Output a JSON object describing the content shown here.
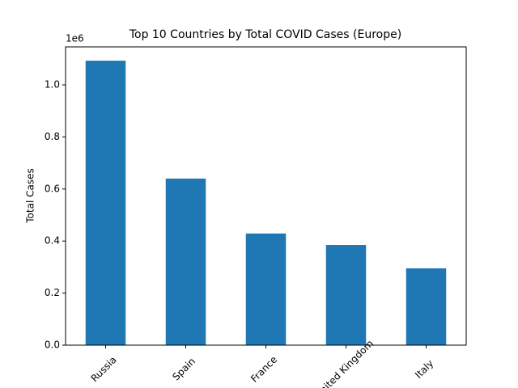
{
  "chart_data": {
    "type": "bar",
    "title": "Top 10 Countries by Total COVID Cases (Europe)",
    "y_label": "Total Cases",
    "y_offset_text": "1e6",
    "categories": [
      "Russia",
      "Spain",
      "France",
      "United Kingdom",
      "Italy"
    ],
    "values": [
      1093000,
      640000,
      429000,
      385000,
      295000
    ],
    "color": "#1f77b4",
    "ylim": [
      0,
      1146000
    ],
    "yticks": [
      {
        "value": 0,
        "label": "0.0"
      },
      {
        "value": 200000,
        "label": "0.2"
      },
      {
        "value": 400000,
        "label": "0.4"
      },
      {
        "value": 600000,
        "label": "0.6"
      },
      {
        "value": 800000,
        "label": "0.8"
      },
      {
        "value": 1000000,
        "label": "1.0"
      }
    ],
    "grid": false
  }
}
